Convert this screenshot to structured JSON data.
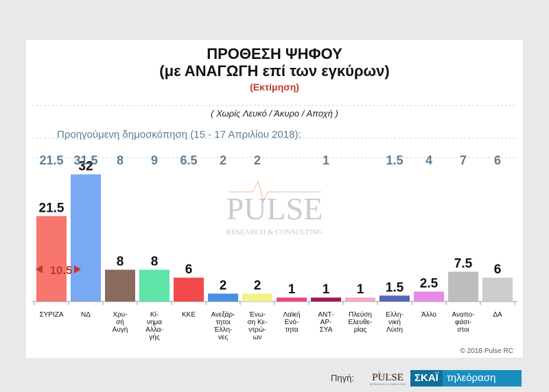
{
  "header": {
    "title_line1": "ΠΡΟΘΕΣΗ ΨΗΦΟΥ",
    "title_line2": "(με ΑΝΑΓΩΓΗ επί των εγκύρων)",
    "subtitle": "(Εκτίμηση)",
    "note": "( Χωρίς Λευκό / Άκυρο / Αποχή )"
  },
  "previous_poll": {
    "label": "Προηγούμενη δημοσκόπηση (15 - 17 Απριλίου 2018):",
    "values": [
      "21.5",
      "31.5",
      "8",
      "9",
      "6.5",
      "2",
      "2",
      "",
      "1",
      "",
      "1.5",
      "4",
      "7",
      "6"
    ]
  },
  "watermark": {
    "main": "PULSE",
    "sub": "RESEARCH & CONSULTING"
  },
  "gap_annotation": "10.5",
  "copyright": "© 2018 Pulse RC",
  "footer": {
    "source_label": "Πηγή:",
    "pulse": "PULSE",
    "pulse_sub": "RESEARCH & CONSULTING",
    "skai": "ΣΚΑΪ",
    "skai_tv": "τηλεόραση"
  },
  "chart_data": {
    "type": "bar",
    "title": "ΠΡΟΘΕΣΗ ΨΗΦΟΥ (με ΑΝΑΓΩΓΗ επί των εγκύρων)",
    "subtitle": "(Εκτίμηση)",
    "categories": [
      [
        "ΣΥΡΙΖΑ"
      ],
      [
        "ΝΔ"
      ],
      [
        "Χρυ-",
        "σή",
        "Αυγή"
      ],
      [
        "Κί-",
        "νημα",
        "Αλλα-",
        "γής"
      ],
      [
        "ΚΚΕ"
      ],
      [
        "Ανεξάρ-",
        "τητοι",
        "Έλλη-",
        "νες"
      ],
      [
        "Ένω-",
        "ση Κε-",
        "ντρώ-",
        "ων"
      ],
      [
        "Λαϊκή",
        "Ενό-",
        "τητα"
      ],
      [
        "ΑΝΤ-",
        "ΑΡ-",
        "ΣΥΑ"
      ],
      [
        "Πλεύση",
        "Ελευθε-",
        "ρίας"
      ],
      [
        "Ελλη-",
        "νική",
        "Λύση"
      ],
      [
        "Άλλο"
      ],
      [
        "Αναπο-",
        "φάσι-",
        "στοι"
      ],
      [
        "ΔΑ"
      ]
    ],
    "values": [
      21.5,
      32,
      8,
      8,
      6,
      2,
      2,
      1,
      1,
      1,
      1.5,
      2.5,
      7.5,
      6
    ],
    "value_labels": [
      "21.5",
      "32",
      "8",
      "8",
      "6",
      "2",
      "2",
      "1",
      "1",
      "1",
      "1.5",
      "2.5",
      "7.5",
      "6"
    ],
    "colors": [
      "#f7776f",
      "#7aa9f3",
      "#8a6a5e",
      "#5ee3a8",
      "#f24a4a",
      "#4a8fe0",
      "#f1f38a",
      "#e8487f",
      "#a0195c",
      "#f5a8c2",
      "#5a64b8",
      "#e78ae8",
      "#bdbdbd",
      "#cccccc"
    ],
    "ylim": [
      0,
      40
    ],
    "grid": false,
    "legend": "none"
  }
}
